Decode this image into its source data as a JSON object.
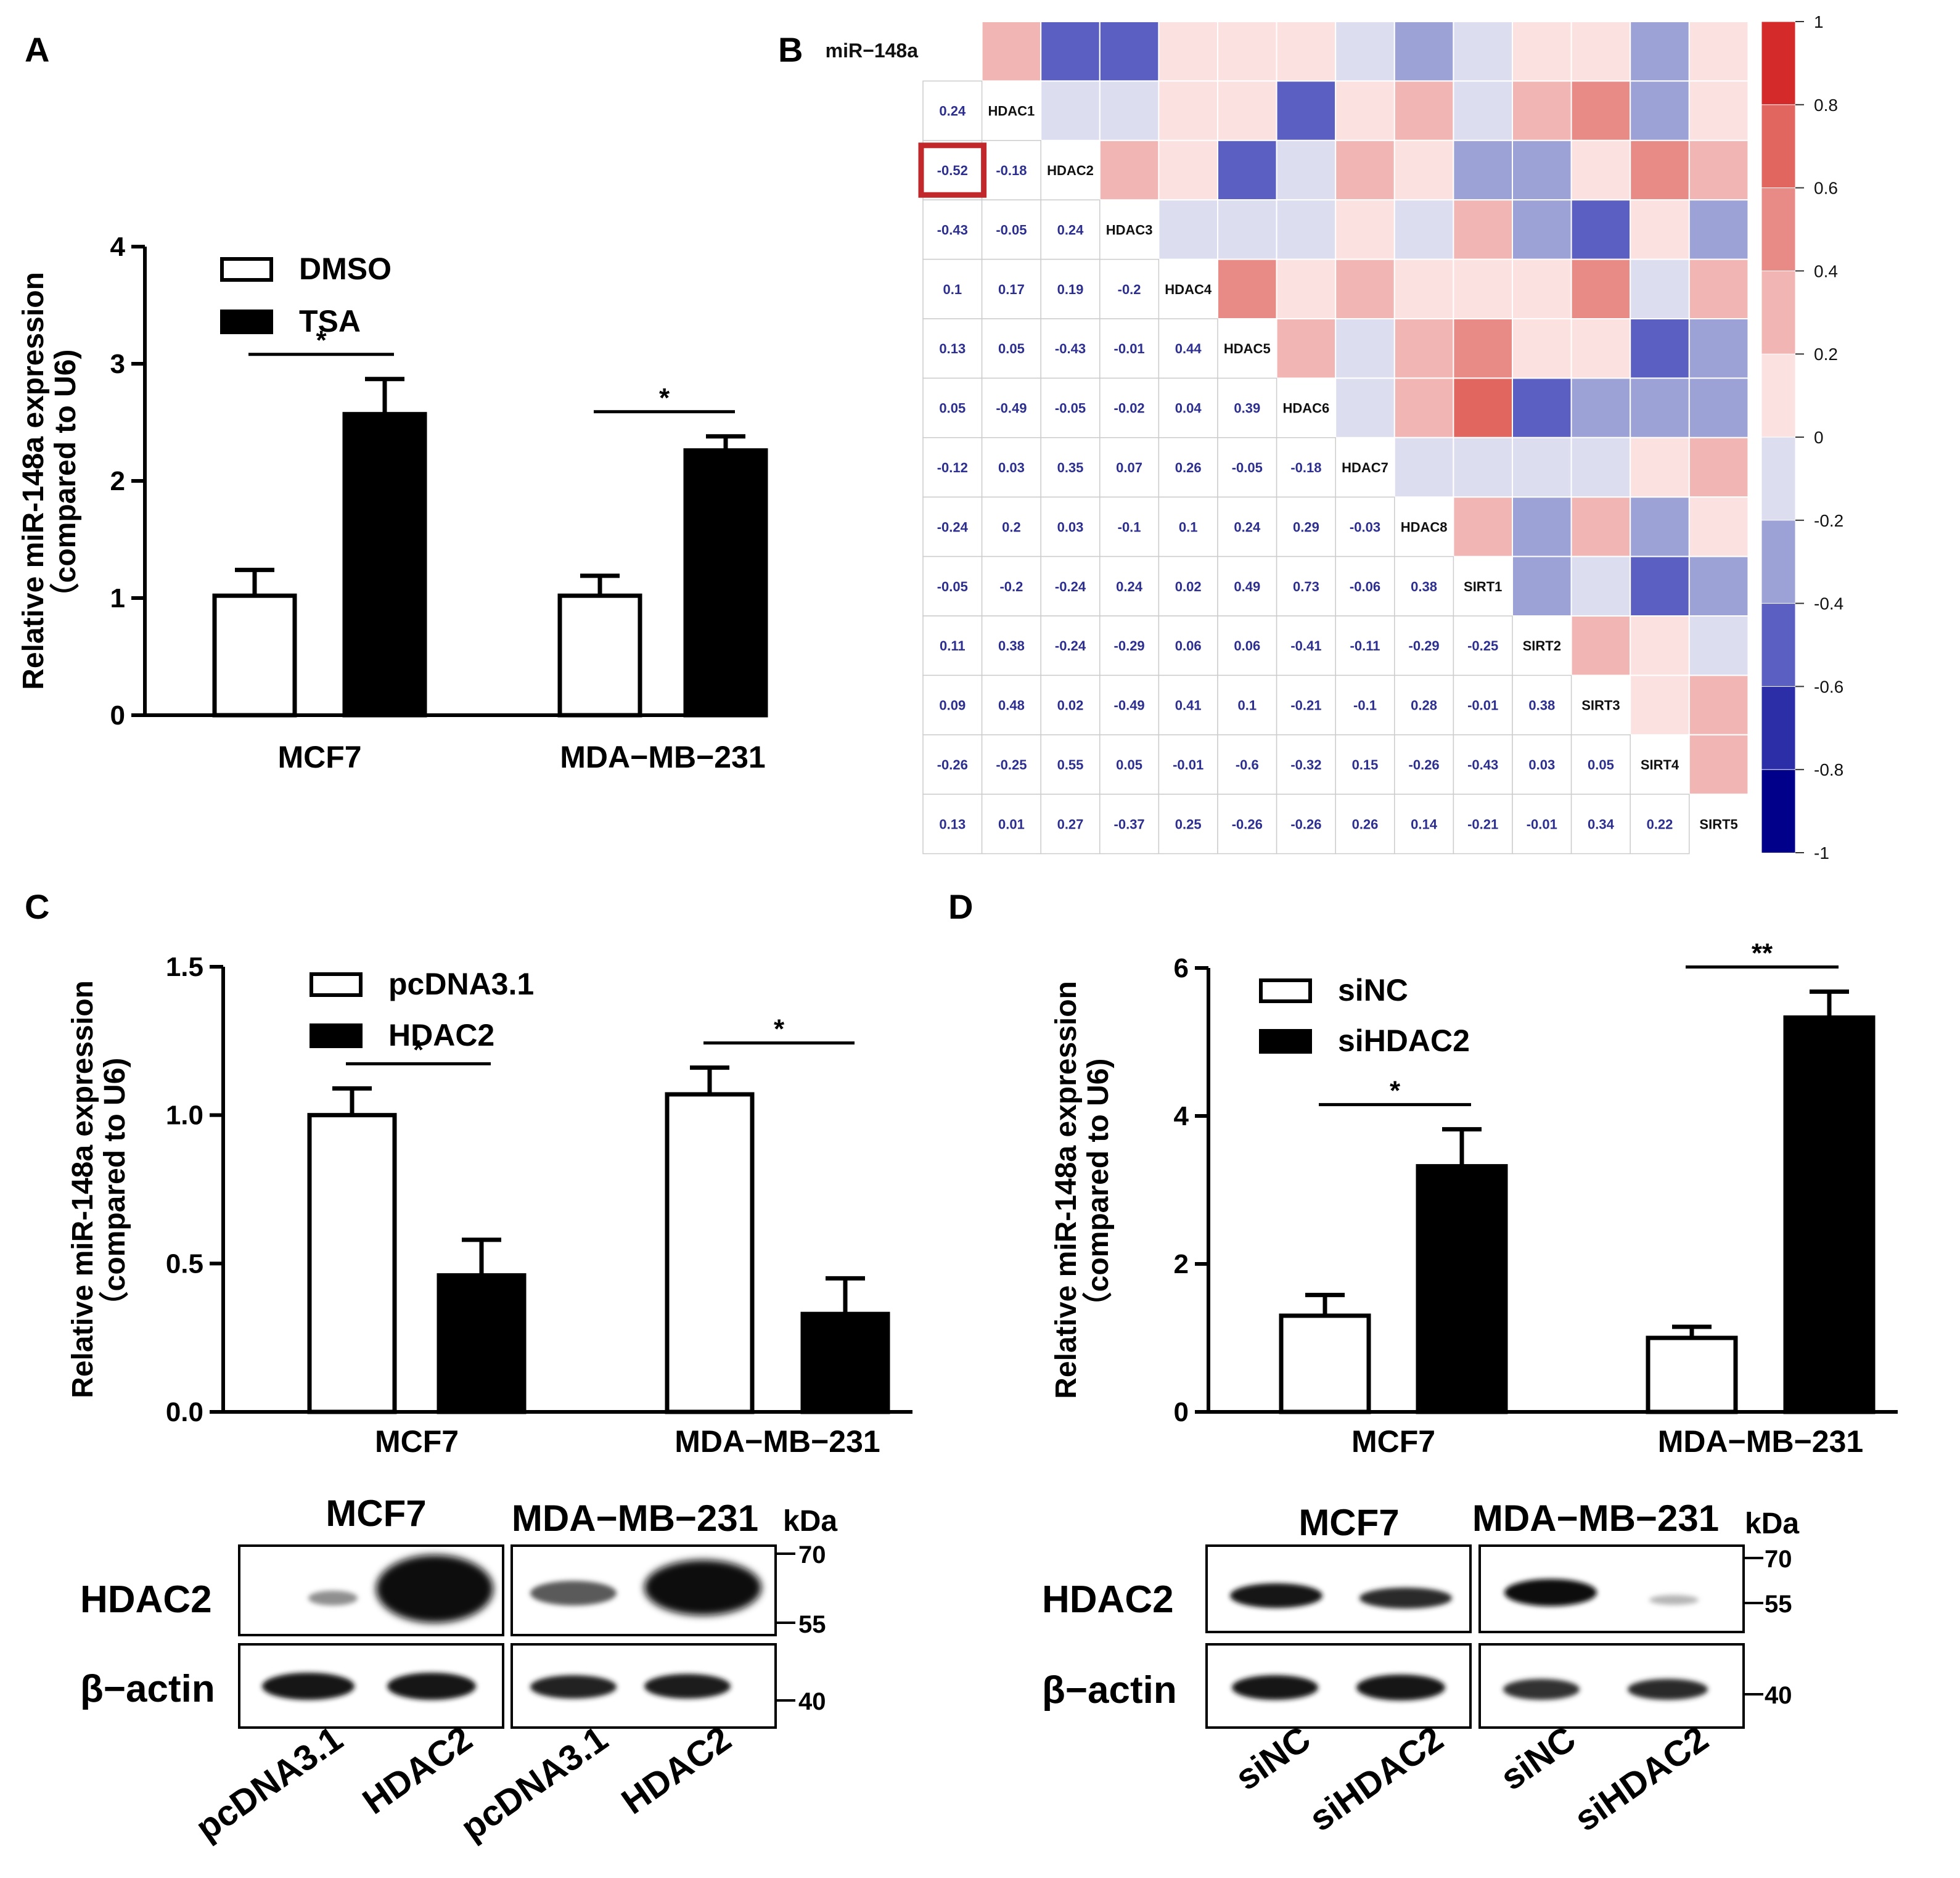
{
  "panels": {
    "A": "A",
    "B": "B",
    "C": "C",
    "D": "D"
  },
  "colors": {
    "white_bar": "#ffffff",
    "black_bar": "#000000",
    "pos": "#d7191c",
    "neg": "#2c2fa6",
    "highlight": "#c0282c"
  },
  "chart_data": [
    {
      "id": "A",
      "type": "bar",
      "ylabel": "Relative miR-148a expression\n（compared to U6)",
      "ylim": [
        0,
        4
      ],
      "yticks": [
        "0",
        "1",
        "2",
        "3",
        "4"
      ],
      "categories": [
        "MCF7",
        "MDA−MB−231"
      ],
      "series": [
        {
          "name": "DMSO",
          "fill": "#ffffff",
          "values": [
            1.02,
            1.02
          ],
          "errors": [
            0.22,
            0.17
          ]
        },
        {
          "name": "TSA",
          "fill": "#000000",
          "values": [
            2.57,
            2.26
          ],
          "errors": [
            0.3,
            0.12
          ]
        }
      ],
      "significance": [
        "*",
        "*"
      ]
    },
    {
      "id": "B",
      "type": "heatmap",
      "title": "",
      "labels": [
        "miR−148a",
        "HDAC1",
        "HDAC2",
        "HDAC3",
        "HDAC4",
        "HDAC5",
        "HDAC6",
        "HDAC7",
        "HDAC8",
        "SIRT1",
        "SIRT2",
        "SIRT3",
        "SIRT4",
        "SIRT5"
      ],
      "lower_values": [
        [],
        [
          "0.24"
        ],
        [
          "-0.52",
          "-0.18"
        ],
        [
          "-0.43",
          "-0.05",
          "0.24"
        ],
        [
          "0.1",
          "0.17",
          "0.19",
          "-0.2"
        ],
        [
          "0.13",
          "0.05",
          "-0.43",
          "-0.01",
          "0.44"
        ],
        [
          "0.05",
          "-0.49",
          "-0.05",
          "-0.02",
          "0.04",
          "0.39"
        ],
        [
          "-0.12",
          "0.03",
          "0.35",
          "0.07",
          "0.26",
          "-0.05",
          "-0.18"
        ],
        [
          "-0.24",
          "0.2",
          "0.03",
          "-0.1",
          "0.1",
          "0.24",
          "0.29",
          "-0.03"
        ],
        [
          "-0.05",
          "-0.2",
          "-0.24",
          "0.24",
          "0.02",
          "0.49",
          "0.73",
          "-0.06",
          "0.38"
        ],
        [
          "0.11",
          "0.38",
          "-0.24",
          "-0.29",
          "0.06",
          "0.06",
          "-0.41",
          "-0.11",
          "-0.29",
          "-0.25"
        ],
        [
          "0.09",
          "0.48",
          "0.02",
          "-0.49",
          "0.41",
          "0.1",
          "-0.21",
          "-0.1",
          "0.28",
          "-0.01",
          "0.38"
        ],
        [
          "-0.26",
          "-0.25",
          "0.55",
          "0.05",
          "-0.01",
          "-0.6",
          "-0.32",
          "0.15",
          "-0.26",
          "-0.43",
          "0.03",
          "0.05"
        ],
        [
          "0.13",
          "0.01",
          "0.27",
          "-0.37",
          "0.25",
          "-0.26",
          "-0.26",
          "0.26",
          "0.14",
          "-0.21",
          "-0.01",
          "0.34",
          "0.22"
        ]
      ],
      "highlight": {
        "row": 2,
        "col": 0,
        "value": "-0.52"
      },
      "colorbar": {
        "min": -1,
        "max": 1,
        "ticks": [
          "1",
          "0.8",
          "0.6",
          "0.4",
          "0.2",
          "0",
          "-0.2",
          "-0.4",
          "-0.6",
          "-0.8",
          "-1"
        ]
      }
    },
    {
      "id": "C",
      "type": "bar",
      "ylabel": "Relative miR-148a expression\n（compared to U6)",
      "ylim": [
        0,
        1.5
      ],
      "yticks": [
        "0.0",
        "0.5",
        "1.0",
        "1.5"
      ],
      "categories": [
        "MCF7",
        "MDA−MB−231"
      ],
      "series": [
        {
          "name": "pcDNA3.1",
          "fill": "#ffffff",
          "values": [
            1.0,
            1.07
          ],
          "errors": [
            0.09,
            0.09
          ]
        },
        {
          "name": "HDAC2",
          "fill": "#000000",
          "values": [
            0.46,
            0.33
          ],
          "errors": [
            0.12,
            0.12
          ]
        }
      ],
      "significance": [
        "*",
        "*"
      ]
    },
    {
      "id": "D",
      "type": "bar",
      "ylabel": "Relative miR-148a expression\n（compared to U6)",
      "ylim": [
        0,
        6
      ],
      "yticks": [
        "0",
        "2",
        "4",
        "6"
      ],
      "categories": [
        "MCF7",
        "MDA−MB−231"
      ],
      "series": [
        {
          "name": "siNC",
          "fill": "#ffffff",
          "values": [
            1.3,
            1.0
          ],
          "errors": [
            0.28,
            0.15
          ]
        },
        {
          "name": "siHDAC2",
          "fill": "#000000",
          "values": [
            3.32,
            5.33
          ],
          "errors": [
            0.5,
            0.35
          ]
        }
      ],
      "significance": [
        "*",
        "**"
      ]
    }
  ],
  "blots": {
    "C": {
      "titles": [
        "MCF7",
        "MDA−MB−231"
      ],
      "kda": "kDa",
      "proteins": [
        "HDAC2",
        "β−actin"
      ],
      "markers_top": [
        "70",
        "55"
      ],
      "marker_bottom": "40",
      "lanes": [
        "pcDNA3.1",
        "HDAC2",
        "pcDNA3.1",
        "HDAC2"
      ]
    },
    "D": {
      "titles": [
        "MCF7",
        "MDA−MB−231"
      ],
      "kda": "kDa",
      "proteins": [
        "HDAC2",
        "β−actin"
      ],
      "markers_top": [
        "70",
        "55"
      ],
      "marker_bottom": "40",
      "lanes": [
        "siNC",
        "siHDAC2",
        "siNC",
        "siHDAC2"
      ]
    }
  }
}
